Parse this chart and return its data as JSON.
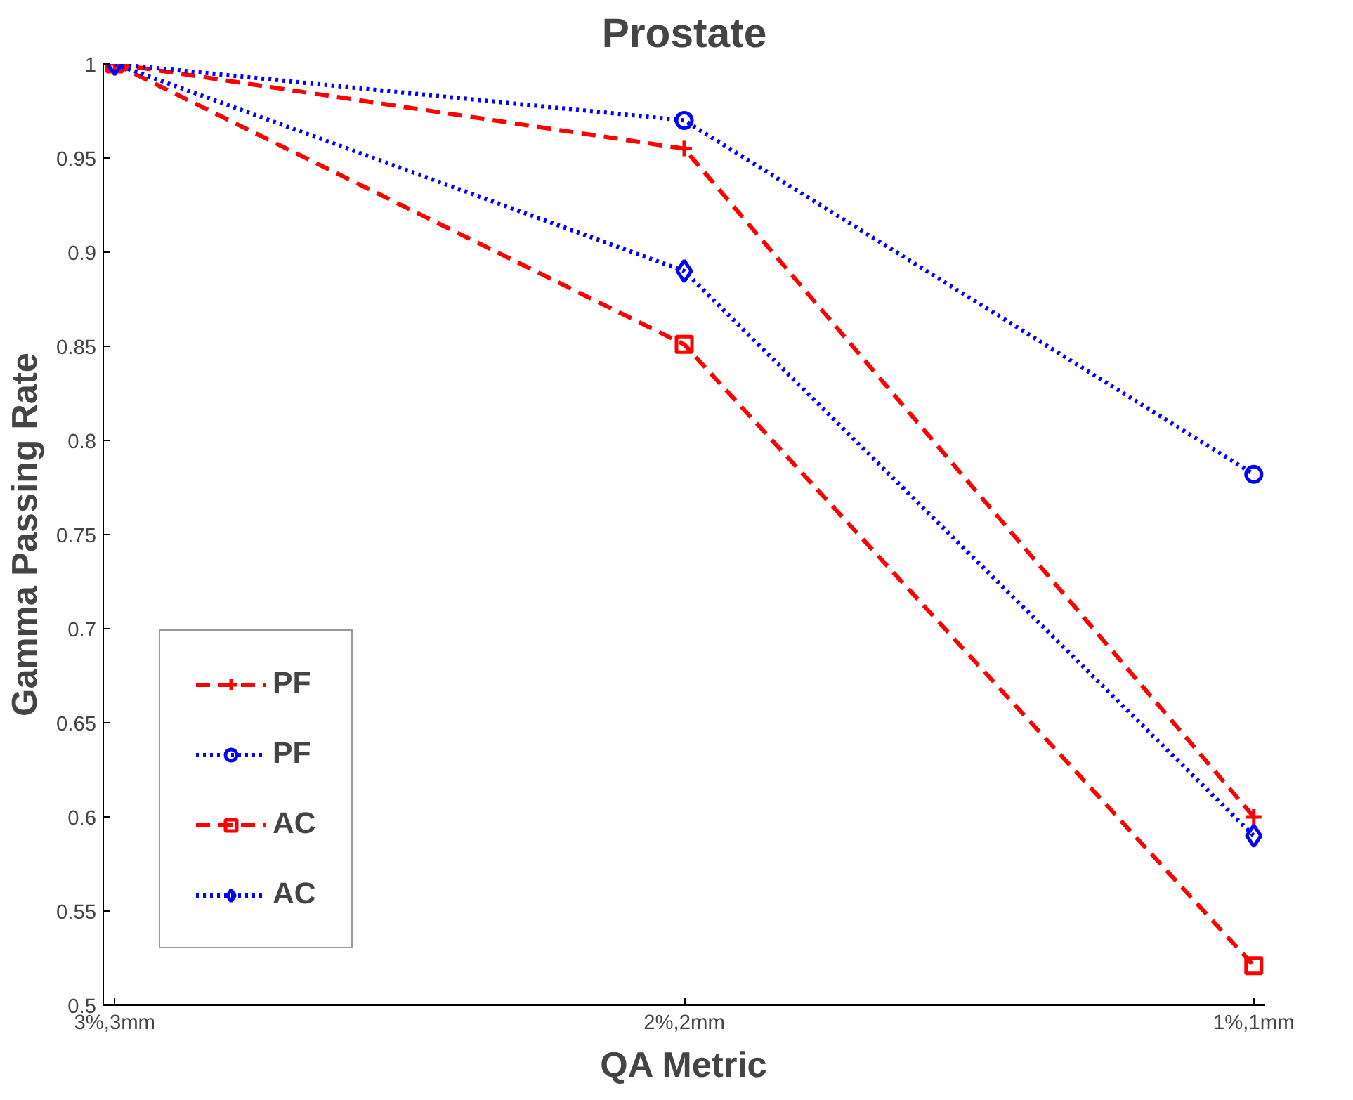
{
  "chart_data": {
    "type": "line",
    "title": "Prostate",
    "xlabel": "QA Metric",
    "ylabel": "Gamma Passing Rate",
    "categories": [
      "3%,3mm",
      "2%,2mm",
      "1%,1mm"
    ],
    "series": [
      {
        "name": "PF",
        "color": "#ff0000",
        "values": [
          1,
          0.955,
          0.6
        ],
        "marker": "cross",
        "line_style": "dashed"
      },
      {
        "name": "PF",
        "color": "#0000ff",
        "values": [
          1,
          0.97,
          0.782
        ],
        "marker": "circle",
        "line_style": "dotted"
      },
      {
        "name": "AC",
        "color": "#ff0000",
        "values": [
          1,
          0.851,
          0.521
        ],
        "marker": "square",
        "line_style": "dashed"
      },
      {
        "name": "AC",
        "color": "#0000ff",
        "values": [
          1,
          0.89,
          0.59
        ],
        "marker": "diamond",
        "line_style": "dotted"
      }
    ],
    "ylim": [
      0.5,
      1
    ],
    "yticks": [
      0.5,
      0.55,
      0.6,
      0.65,
      0.7,
      0.75,
      0.8,
      0.85,
      0.9,
      0.95,
      1
    ],
    "grid": false,
    "legend": "bottom left"
  }
}
